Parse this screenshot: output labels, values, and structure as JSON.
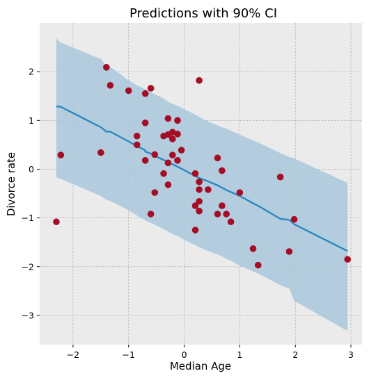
{
  "chart_data": {
    "type": "scatter",
    "title": "Predictions with 90% CI",
    "xlabel": "Median Age",
    "ylabel": "Divorce rate",
    "xlim": [
      -2.6,
      3.2
    ],
    "ylim": [
      -3.6,
      3.0
    ],
    "xticks": [
      -2,
      -1,
      0,
      1,
      2,
      3
    ],
    "yticks": [
      -3,
      -2,
      -1,
      0,
      1,
      2
    ],
    "grid": true,
    "colors": {
      "background": "#ebebeb",
      "grid": "#b0b0b0",
      "points": "#a50d27",
      "line": "#2e86c1",
      "band": "#aac8dc"
    },
    "points": [
      {
        "x": -2.3,
        "y": -1.08
      },
      {
        "x": -2.22,
        "y": 0.29
      },
      {
        "x": -1.5,
        "y": 0.34
      },
      {
        "x": -1.4,
        "y": 2.09
      },
      {
        "x": -1.33,
        "y": 1.72
      },
      {
        "x": -1.0,
        "y": 1.61
      },
      {
        "x": -0.85,
        "y": 0.68
      },
      {
        "x": -0.85,
        "y": 0.5
      },
      {
        "x": -0.7,
        "y": 1.55
      },
      {
        "x": -0.7,
        "y": 0.95
      },
      {
        "x": -0.7,
        "y": 0.18
      },
      {
        "x": -0.6,
        "y": 1.66
      },
      {
        "x": -0.6,
        "y": -0.92
      },
      {
        "x": -0.53,
        "y": 0.3
      },
      {
        "x": -0.53,
        "y": -0.48
      },
      {
        "x": -0.37,
        "y": 0.68
      },
      {
        "x": -0.37,
        "y": -0.09
      },
      {
        "x": -0.29,
        "y": 1.04
      },
      {
        "x": -0.29,
        "y": 0.71
      },
      {
        "x": -0.29,
        "y": 0.13
      },
      {
        "x": -0.29,
        "y": -0.32
      },
      {
        "x": -0.21,
        "y": 0.76
      },
      {
        "x": -0.21,
        "y": 0.62
      },
      {
        "x": -0.21,
        "y": 0.29
      },
      {
        "x": -0.12,
        "y": 1.0
      },
      {
        "x": -0.12,
        "y": 0.72
      },
      {
        "x": -0.12,
        "y": 0.18
      },
      {
        "x": -0.05,
        "y": 0.39
      },
      {
        "x": 0.2,
        "y": -0.09
      },
      {
        "x": 0.2,
        "y": -0.75
      },
      {
        "x": 0.2,
        "y": -1.25
      },
      {
        "x": 0.27,
        "y": 1.82
      },
      {
        "x": 0.27,
        "y": -0.26
      },
      {
        "x": 0.27,
        "y": -0.42
      },
      {
        "x": 0.27,
        "y": -0.66
      },
      {
        "x": 0.27,
        "y": -0.86
      },
      {
        "x": 0.43,
        "y": -0.42
      },
      {
        "x": 0.6,
        "y": 0.23
      },
      {
        "x": 0.6,
        "y": -0.92
      },
      {
        "x": 0.68,
        "y": -0.03
      },
      {
        "x": 0.68,
        "y": -0.75
      },
      {
        "x": 0.76,
        "y": -0.92
      },
      {
        "x": 0.84,
        "y": -1.08
      },
      {
        "x": 1.0,
        "y": -0.48
      },
      {
        "x": 1.24,
        "y": -1.63
      },
      {
        "x": 1.33,
        "y": -1.97
      },
      {
        "x": 1.73,
        "y": -0.16
      },
      {
        "x": 1.89,
        "y": -1.69
      },
      {
        "x": 1.98,
        "y": -1.03
      },
      {
        "x": 2.94,
        "y": -1.85
      }
    ],
    "prediction_line": [
      {
        "x": -2.3,
        "y": 1.29
      },
      {
        "x": -2.22,
        "y": 1.28
      },
      {
        "x": -1.5,
        "y": 0.86
      },
      {
        "x": -1.4,
        "y": 0.77
      },
      {
        "x": -1.33,
        "y": 0.77
      },
      {
        "x": -1.0,
        "y": 0.57
      },
      {
        "x": -0.85,
        "y": 0.47
      },
      {
        "x": -0.7,
        "y": 0.39
      },
      {
        "x": -0.7,
        "y": 0.36
      },
      {
        "x": -0.6,
        "y": 0.32
      },
      {
        "x": -0.53,
        "y": 0.27
      },
      {
        "x": -0.37,
        "y": 0.19
      },
      {
        "x": -0.29,
        "y": 0.14
      },
      {
        "x": -0.21,
        "y": 0.1
      },
      {
        "x": -0.12,
        "y": 0.05
      },
      {
        "x": -0.05,
        "y": 0.01
      },
      {
        "x": 0.2,
        "y": -0.14
      },
      {
        "x": 0.27,
        "y": -0.18
      },
      {
        "x": 0.43,
        "y": -0.25
      },
      {
        "x": 0.6,
        "y": -0.33
      },
      {
        "x": 0.68,
        "y": -0.38
      },
      {
        "x": 0.76,
        "y": -0.43
      },
      {
        "x": 0.84,
        "y": -0.47
      },
      {
        "x": 1.0,
        "y": -0.55
      },
      {
        "x": 1.24,
        "y": -0.7
      },
      {
        "x": 1.33,
        "y": -0.75
      },
      {
        "x": 1.73,
        "y": -1.02
      },
      {
        "x": 1.89,
        "y": -1.04
      },
      {
        "x": 1.98,
        "y": -1.13
      },
      {
        "x": 2.94,
        "y": -1.68
      }
    ],
    "ci_upper": [
      {
        "x": -2.3,
        "y": 2.68
      },
      {
        "x": -2.22,
        "y": 2.6
      },
      {
        "x": -1.5,
        "y": 2.26
      },
      {
        "x": -1.4,
        "y": 2.12
      },
      {
        "x": -1.33,
        "y": 2.1
      },
      {
        "x": -1.0,
        "y": 1.82
      },
      {
        "x": -0.85,
        "y": 1.72
      },
      {
        "x": -0.7,
        "y": 1.64
      },
      {
        "x": -0.6,
        "y": 1.58
      },
      {
        "x": -0.53,
        "y": 1.54
      },
      {
        "x": -0.37,
        "y": 1.45
      },
      {
        "x": -0.29,
        "y": 1.38
      },
      {
        "x": -0.21,
        "y": 1.34
      },
      {
        "x": -0.12,
        "y": 1.3
      },
      {
        "x": -0.05,
        "y": 1.26
      },
      {
        "x": 0.2,
        "y": 1.12
      },
      {
        "x": 0.27,
        "y": 1.07
      },
      {
        "x": 0.43,
        "y": 0.98
      },
      {
        "x": 0.6,
        "y": 0.9
      },
      {
        "x": 0.68,
        "y": 0.86
      },
      {
        "x": 0.76,
        "y": 0.83
      },
      {
        "x": 0.84,
        "y": 0.79
      },
      {
        "x": 1.0,
        "y": 0.71
      },
      {
        "x": 1.24,
        "y": 0.59
      },
      {
        "x": 1.33,
        "y": 0.55
      },
      {
        "x": 1.73,
        "y": 0.33
      },
      {
        "x": 1.89,
        "y": 0.25
      },
      {
        "x": 1.98,
        "y": 0.22
      },
      {
        "x": 2.94,
        "y": -0.28
      }
    ],
    "ci_lower": [
      {
        "x": -2.3,
        "y": -0.17
      },
      {
        "x": -2.22,
        "y": -0.2
      },
      {
        "x": -1.5,
        "y": -0.55
      },
      {
        "x": -1.4,
        "y": -0.63
      },
      {
        "x": -1.33,
        "y": -0.65
      },
      {
        "x": -1.0,
        "y": -0.84
      },
      {
        "x": -0.85,
        "y": -0.95
      },
      {
        "x": -0.7,
        "y": -1.05
      },
      {
        "x": -0.6,
        "y": -1.1
      },
      {
        "x": -0.53,
        "y": -1.14
      },
      {
        "x": -0.37,
        "y": -1.23
      },
      {
        "x": -0.29,
        "y": -1.28
      },
      {
        "x": -0.21,
        "y": -1.33
      },
      {
        "x": -0.12,
        "y": -1.37
      },
      {
        "x": -0.05,
        "y": -1.42
      },
      {
        "x": 0.2,
        "y": -1.56
      },
      {
        "x": 0.27,
        "y": -1.6
      },
      {
        "x": 0.43,
        "y": -1.68
      },
      {
        "x": 0.6,
        "y": -1.75
      },
      {
        "x": 0.68,
        "y": -1.79
      },
      {
        "x": 0.76,
        "y": -1.84
      },
      {
        "x": 0.84,
        "y": -1.88
      },
      {
        "x": 1.0,
        "y": -1.98
      },
      {
        "x": 1.24,
        "y": -2.1
      },
      {
        "x": 1.33,
        "y": -2.14
      },
      {
        "x": 1.73,
        "y": -2.38
      },
      {
        "x": 1.89,
        "y": -2.45
      },
      {
        "x": 1.98,
        "y": -2.7
      },
      {
        "x": 2.94,
        "y": -3.32
      }
    ]
  }
}
